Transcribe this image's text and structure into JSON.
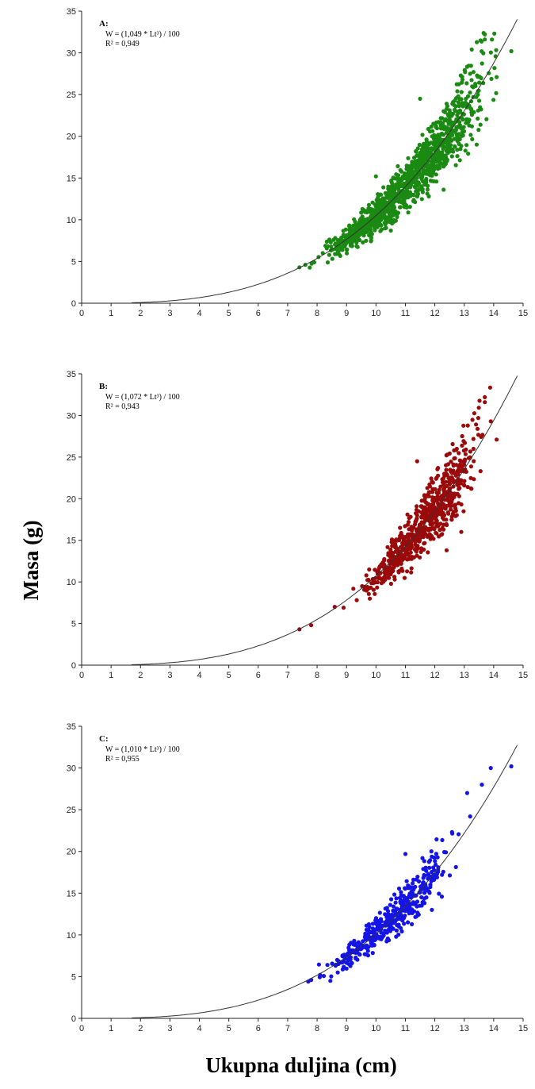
{
  "figure": {
    "xlabel": "Ukupna duljina (cm)",
    "ylabel": "Masa (g)"
  },
  "chart_data": [
    {
      "type": "scatter",
      "panel_label": "A:",
      "equation": "W = (1,049  * Lt³) / 100",
      "r2": "R² = 0,949",
      "coefficient": 1.049,
      "color": "#1a8a12",
      "xlim": [
        0,
        15
      ],
      "ylim": [
        0,
        35
      ],
      "x_ticks": [
        0,
        1,
        2,
        3,
        4,
        5,
        6,
        7,
        8,
        9,
        10,
        11,
        12,
        13,
        14,
        15
      ],
      "y_ticks": [
        0,
        5,
        10,
        15,
        20,
        25,
        30,
        35
      ],
      "x_tick_labels": [
        "0",
        "1",
        "2",
        "3",
        "4",
        "5",
        "6",
        "7",
        "8",
        "9",
        "10",
        "11",
        "12",
        "13",
        "14",
        "15"
      ],
      "y_tick_labels": [
        "0",
        "5",
        "10",
        "15",
        "20",
        "25",
        "30",
        "35"
      ],
      "fit_curve": {
        "x_start": 1.7,
        "x_end": 14.8
      },
      "cloud": {
        "x_min": 7.4,
        "x_max": 14.6,
        "n": 1200,
        "seed": 11,
        "spread": 0.1
      },
      "anchor_points": [
        [
          7.4,
          4.3
        ],
        [
          7.6,
          4.6
        ],
        [
          7.9,
          4.9
        ],
        [
          13.7,
          32.2
        ],
        [
          13.7,
          31.6
        ],
        [
          14.6,
          30.2
        ],
        [
          14.1,
          27.1
        ],
        [
          13.2,
          27.5
        ],
        [
          12.3,
          13.6
        ],
        [
          11.5,
          24.5
        ],
        [
          10.0,
          15.2
        ]
      ]
    },
    {
      "type": "scatter",
      "panel_label": "B:",
      "equation": "W = (1,072  * Lt³) / 100",
      "r2": "R² = 0,943",
      "coefficient": 1.072,
      "color": "#9b0a0a",
      "xlim": [
        0,
        15
      ],
      "ylim": [
        0,
        35
      ],
      "x_ticks": [
        0,
        1,
        2,
        3,
        4,
        5,
        6,
        7,
        8,
        9,
        10,
        11,
        12,
        13,
        14,
        15
      ],
      "y_ticks": [
        0,
        5,
        10,
        15,
        20,
        25,
        30,
        35
      ],
      "x_tick_labels": [
        "0",
        "1",
        "2",
        "3",
        "4",
        "5",
        "6",
        "7",
        "8",
        "9",
        "10",
        "11",
        "12",
        "13",
        "14",
        "15"
      ],
      "y_tick_labels": [
        "0",
        "5",
        "10",
        "15",
        "20",
        "25",
        "30",
        "35"
      ],
      "fit_curve": {
        "x_start": 1.7,
        "x_end": 14.8
      },
      "cloud": {
        "x_min": 9.1,
        "x_max": 14.0,
        "n": 700,
        "seed": 23,
        "spread": 0.1
      },
      "anchor_points": [
        [
          7.4,
          4.3
        ],
        [
          7.8,
          4.8
        ],
        [
          8.6,
          7.0
        ],
        [
          8.9,
          6.9
        ],
        [
          13.7,
          32.2
        ],
        [
          13.7,
          31.6
        ],
        [
          14.1,
          27.1
        ],
        [
          13.9,
          29.3
        ],
        [
          11.4,
          24.5
        ],
        [
          12.4,
          13.8
        ],
        [
          12.9,
          16.0
        ]
      ]
    },
    {
      "type": "scatter",
      "panel_label": "C:",
      "equation": "W = (1,010  * Lt³) / 100",
      "r2": "R² = 0,955",
      "coefficient": 1.01,
      "color": "#1414e6",
      "xlim": [
        0,
        15
      ],
      "ylim": [
        0,
        35
      ],
      "x_ticks": [
        0,
        1,
        2,
        3,
        4,
        5,
        6,
        7,
        8,
        9,
        10,
        11,
        12,
        13,
        14,
        15
      ],
      "y_ticks": [
        0,
        5,
        10,
        15,
        20,
        25,
        30,
        35
      ],
      "x_tick_labels": [
        "0",
        "1",
        "2",
        "3",
        "4",
        "5",
        "6",
        "7",
        "8",
        "9",
        "10",
        "11",
        "12",
        "13",
        "14",
        "15"
      ],
      "y_tick_labels": [
        "0",
        "5",
        "10",
        "15",
        "20",
        "25",
        "30",
        "35"
      ],
      "fit_curve": {
        "x_start": 1.7,
        "x_end": 14.8
      },
      "cloud": {
        "x_min": 7.8,
        "x_max": 13.2,
        "n": 420,
        "seed": 37,
        "spread": 0.1
      },
      "anchor_points": [
        [
          7.7,
          4.4
        ],
        [
          7.8,
          4.6
        ],
        [
          8.1,
          5.2
        ],
        [
          8.7,
          5.5
        ],
        [
          13.9,
          30.0
        ],
        [
          14.6,
          30.2
        ],
        [
          13.6,
          28.0
        ],
        [
          13.1,
          27.0
        ],
        [
          13.2,
          24.2
        ],
        [
          11.0,
          19.7
        ],
        [
          11.9,
          13.0
        ]
      ]
    }
  ]
}
